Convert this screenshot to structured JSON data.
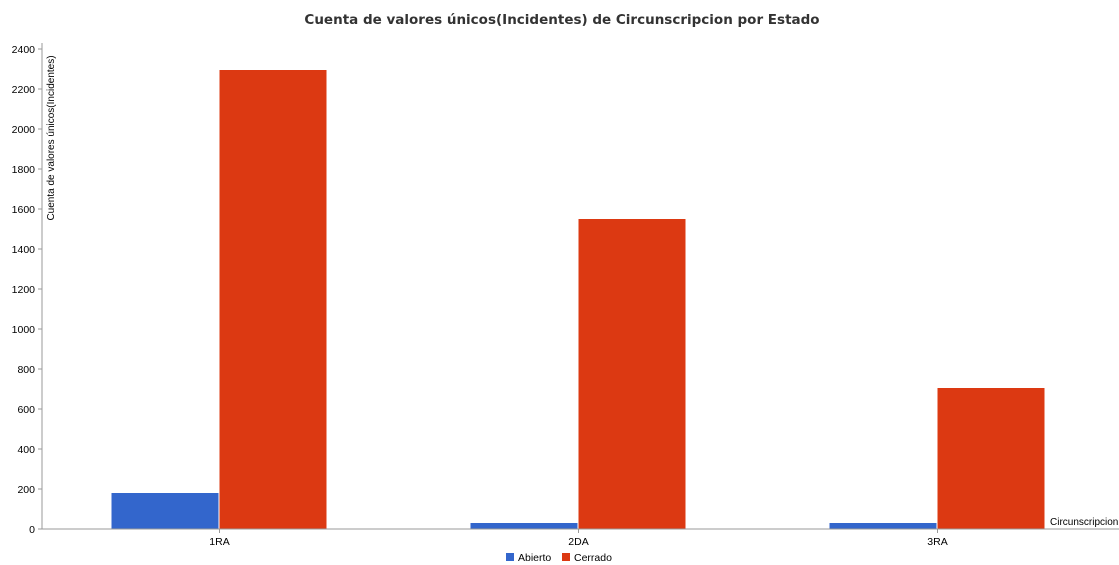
{
  "chart_data": {
    "type": "bar",
    "title": "Cuenta de valores únicos(Incidentes) de Circunscripcion por Estado",
    "xlabel": "Circunscripcion",
    "ylabel": "Cuenta de valores únicos(Incidentes)",
    "categories": [
      "1RA",
      "2DA",
      "3RA"
    ],
    "series": [
      {
        "name": "Abierto",
        "color": "#3366cc",
        "values": [
          180,
          30,
          30
        ]
      },
      {
        "name": "Cerrado",
        "color": "#dc3912",
        "values": [
          2295,
          1550,
          705
        ]
      }
    ],
    "ylim": [
      0,
      2400
    ],
    "yticks": [
      0,
      200,
      400,
      600,
      800,
      1000,
      1200,
      1400,
      1600,
      1800,
      2000,
      2200,
      2400
    ],
    "grid": false,
    "legend": "bottom-center"
  }
}
